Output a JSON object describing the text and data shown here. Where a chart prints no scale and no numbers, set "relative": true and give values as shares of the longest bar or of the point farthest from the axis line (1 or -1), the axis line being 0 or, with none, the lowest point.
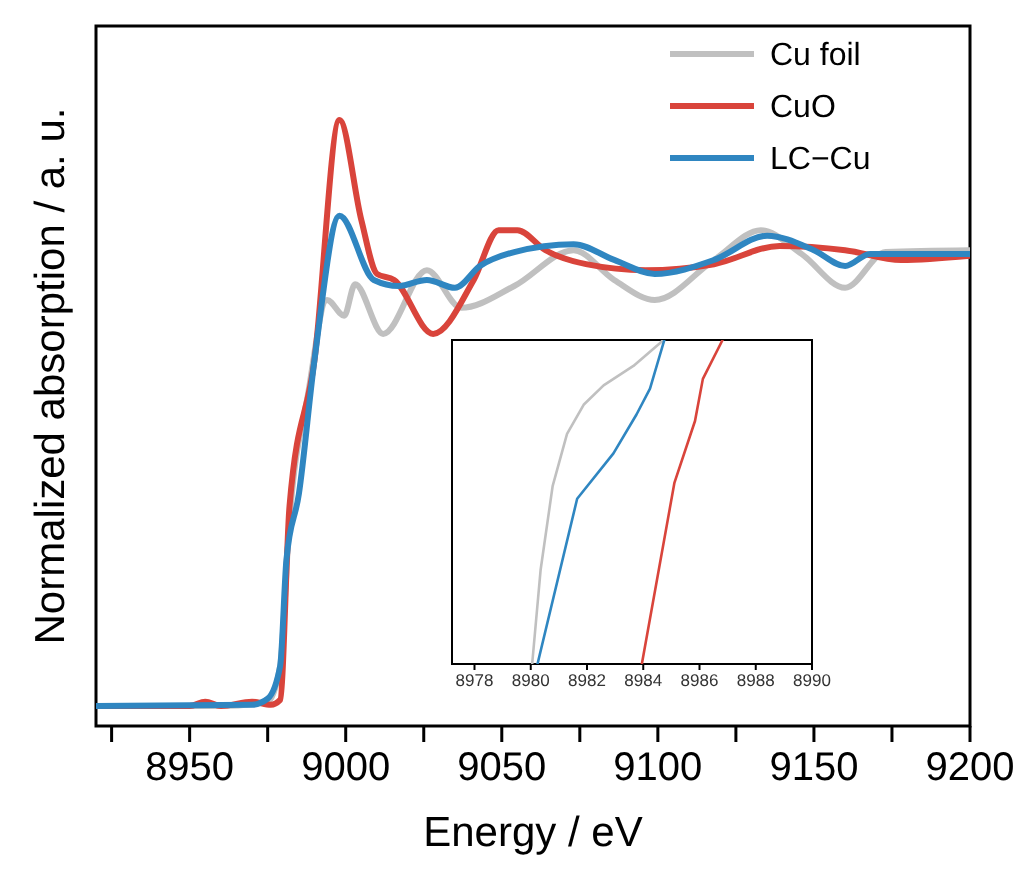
{
  "chart_data": [
    {
      "type": "line",
      "relative": true,
      "xlabel": "Energy / eV",
      "ylabel": "Normalized absorption / a. u.",
      "xlim": [
        8920,
        9200
      ],
      "xticks": [
        {
          "value": 8925,
          "label": null
        },
        8950,
        {
          "value": 8975,
          "label": null
        },
        9000,
        {
          "value": 9025,
          "label": null
        },
        9050,
        {
          "value": 9075,
          "label": null
        },
        9100,
        {
          "value": 9125,
          "label": null
        },
        9150,
        {
          "value": 9175,
          "label": null
        },
        9200
      ],
      "legend": "top right",
      "line_style": "solid",
      "series": [
        {
          "name": "Cu foil",
          "color": "#c0c0c0",
          "x": [
            8920,
            8960,
            8975,
            8979,
            8982,
            8988,
            8994,
            8999.5,
            9003,
            9012,
            9026,
            9037,
            9054,
            9073,
            9086,
            9099,
            9118,
            9133,
            9146,
            9160,
            9173,
            9200
          ],
          "values": [
            0.033,
            0.033,
            0.04,
            0.099,
            0.34,
            0.55,
            0.703,
            0.677,
            0.729,
            0.647,
            0.752,
            0.69,
            0.726,
            0.785,
            0.736,
            0.703,
            0.769,
            0.818,
            0.779,
            0.723,
            0.782,
            0.785
          ]
        },
        {
          "name": "CuO",
          "color": "#d9443b",
          "x": [
            8920,
            8950,
            8955,
            8960,
            8970,
            8976,
            8979,
            8982,
            8990,
            8998,
            9005,
            9010,
            9015.5,
            9028,
            9041,
            9049,
            9055,
            9064,
            9077,
            9096,
            9118,
            9139,
            9160,
            9178,
            9200
          ],
          "values": [
            0.033,
            0.033,
            0.04,
            0.033,
            0.04,
            0.035,
            0.043,
            0.363,
            0.604,
            1,
            0.835,
            0.746,
            0.736,
            0.647,
            0.736,
            0.818,
            0.818,
            0.785,
            0.762,
            0.752,
            0.762,
            0.792,
            0.785,
            0.769,
            0.776
          ]
        },
        {
          "name": "LC−Cu",
          "color": "#2f86c1",
          "x": [
            8920,
            8970,
            8975,
            8979,
            8981,
            8985,
            8990,
            8998,
            9009,
            9017,
            9026,
            9035,
            9043,
            9054,
            9073,
            9086,
            9099,
            9118,
            9135,
            9150,
            9160,
            9168,
            9200
          ],
          "values": [
            0.033,
            0.035,
            0.045,
            0.099,
            0.274,
            0.383,
            0.604,
            0.842,
            0.736,
            0.726,
            0.736,
            0.723,
            0.759,
            0.782,
            0.795,
            0.769,
            0.746,
            0.769,
            0.809,
            0.785,
            0.759,
            0.779,
            0.779
          ]
        }
      ]
    },
    {
      "type": "line",
      "relative": true,
      "xlim": [
        8977.2,
        8990
      ],
      "xticks": [
        8978,
        8980,
        8982,
        8984,
        8986,
        8988,
        8990
      ],
      "line_style": "solid",
      "series": [
        {
          "color": "#c0c0c0",
          "x": [
            8980.05,
            8980.35,
            8980.78,
            8981.29,
            8981.88,
            8982.59,
            8983.65,
            8984.59,
            8984.71
          ],
          "values": [
            0,
            0.29,
            0.55,
            0.71,
            0.8,
            0.86,
            0.92,
            0.99,
            1
          ]
        },
        {
          "color": "#d9443b",
          "x": [
            8983.95,
            8985.11,
            8985.84,
            8986.12,
            8986.82
          ],
          "values": [
            0,
            0.56,
            0.75,
            0.88,
            1
          ]
        },
        {
          "color": "#2f86c1",
          "x": [
            8980.24,
            8981.65,
            8982.94,
            8983.76,
            8984.24,
            8984.75
          ],
          "values": [
            0,
            0.51,
            0.65,
            0.77,
            0.85,
            1
          ]
        }
      ]
    }
  ]
}
